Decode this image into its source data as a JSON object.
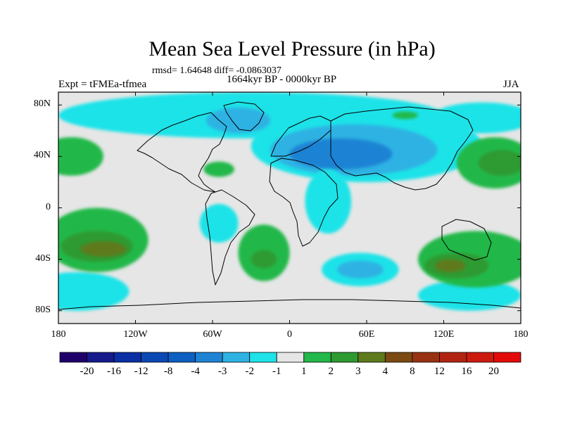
{
  "chart_data": {
    "type": "heatmap",
    "title": "Mean Sea Level Pressure (in hPa)",
    "stats_text": "rmsd= 1.64648 diff= -0.0863037",
    "period": "1664kyr BP - 0000kyr BP",
    "experiment": "Expt = tFMEa-tfmea",
    "season": "JJA",
    "xlim": [
      -180,
      180
    ],
    "ylim": [
      -90,
      90
    ],
    "x_ticks": [
      {
        "value": -180,
        "label": "180"
      },
      {
        "value": -120,
        "label": "120W"
      },
      {
        "value": -60,
        "label": "60W"
      },
      {
        "value": 0,
        "label": "0"
      },
      {
        "value": 60,
        "label": "60E"
      },
      {
        "value": 120,
        "label": "120E"
      },
      {
        "value": 180,
        "label": "180"
      }
    ],
    "y_ticks": [
      {
        "value": 80,
        "label": "80N"
      },
      {
        "value": 40,
        "label": "40N"
      },
      {
        "value": 0,
        "label": "0"
      },
      {
        "value": -40,
        "label": "40S"
      },
      {
        "value": -80,
        "label": "80S"
      }
    ],
    "colorbar": {
      "levels": [
        "-20",
        "-16",
        "-12",
        "-8",
        "-4",
        "-3",
        "-2",
        "-1",
        "1",
        "2",
        "3",
        "4",
        "8",
        "12",
        "16",
        "20"
      ],
      "colors": [
        "#1f006b",
        "#161a8c",
        "#0a2ea3",
        "#0a48b4",
        "#0d5fc1",
        "#1f83d4",
        "#2db2e3",
        "#1ee3e8",
        "#e6e6e6",
        "#22b84a",
        "#2e9a30",
        "#5e7a1c",
        "#7a4a12",
        "#983212",
        "#b22411",
        "#cc1a0e",
        "#e40a0a"
      ]
    },
    "regions": [
      {
        "name": "arctic-cyan",
        "lon": -30,
        "lat": 72,
        "rlon": 150,
        "rlat": 18,
        "bin": 7
      },
      {
        "name": "arctic-pacific-cyan",
        "lon": 150,
        "lat": 70,
        "rlon": 40,
        "rlat": 12,
        "bin": 7
      },
      {
        "name": "eurasia-low-outer",
        "lon": 60,
        "lat": 48,
        "rlon": 90,
        "rlat": 28,
        "bin": 7
      },
      {
        "name": "eurasia-low-mid",
        "lon": 50,
        "lat": 45,
        "rlon": 65,
        "rlat": 20,
        "bin": 6
      },
      {
        "name": "eurasia-low-core",
        "lon": 40,
        "lat": 42,
        "rlon": 40,
        "rlat": 12,
        "bin": 5
      },
      {
        "name": "greenland-low",
        "lon": -40,
        "lat": 68,
        "rlon": 25,
        "rlat": 10,
        "bin": 6
      },
      {
        "name": "africa-cyan",
        "lon": 30,
        "lat": 5,
        "rlon": 18,
        "rlat": 25,
        "bin": 7
      },
      {
        "name": "south-america-cyan",
        "lon": -55,
        "lat": -12,
        "rlon": 15,
        "rlat": 15,
        "bin": 7
      },
      {
        "name": "south-indian-cyan",
        "lon": 55,
        "lat": -48,
        "rlon": 30,
        "rlat": 13,
        "bin": 7
      },
      {
        "name": "south-indian-blue",
        "lon": 55,
        "lat": -48,
        "rlon": 18,
        "rlat": 7,
        "bin": 6
      },
      {
        "name": "south-pacific-cyan-w",
        "lon": -165,
        "lat": -65,
        "rlon": 40,
        "rlat": 15,
        "bin": 7
      },
      {
        "name": "antarctic-cyan-e",
        "lon": 140,
        "lat": -68,
        "rlon": 40,
        "rlat": 12,
        "bin": 7
      },
      {
        "name": "north-pacific-green-w",
        "lon": -170,
        "lat": 40,
        "rlon": 25,
        "rlat": 15,
        "bin": 9
      },
      {
        "name": "north-pacific-green-e",
        "lon": 160,
        "lat": 35,
        "rlon": 30,
        "rlat": 20,
        "bin": 9
      },
      {
        "name": "north-pacific-olive-e",
        "lon": 165,
        "lat": 35,
        "rlon": 18,
        "rlat": 10,
        "bin": 10
      },
      {
        "name": "north-atlantic-green",
        "lon": -55,
        "lat": 30,
        "rlon": 12,
        "rlat": 6,
        "bin": 9
      },
      {
        "name": "south-pacific-green-w",
        "lon": -150,
        "lat": -25,
        "rlon": 40,
        "rlat": 25,
        "bin": 9
      },
      {
        "name": "south-pacific-olive-w",
        "lon": -150,
        "lat": -30,
        "rlon": 28,
        "rlat": 12,
        "bin": 10
      },
      {
        "name": "south-pacific-brown-w",
        "lon": -145,
        "lat": -32,
        "rlon": 18,
        "rlat": 6,
        "bin": 11
      },
      {
        "name": "south-atlantic-green",
        "lon": -20,
        "lat": -35,
        "rlon": 20,
        "rlat": 22,
        "bin": 9
      },
      {
        "name": "south-atlantic-olive",
        "lon": -20,
        "lat": -40,
        "rlon": 10,
        "rlat": 7,
        "bin": 10
      },
      {
        "name": "south-pacific-green-e",
        "lon": 145,
        "lat": -40,
        "rlon": 45,
        "rlat": 22,
        "bin": 9
      },
      {
        "name": "south-pacific-olive-e",
        "lon": 130,
        "lat": -45,
        "rlon": 25,
        "rlat": 10,
        "bin": 10
      },
      {
        "name": "south-pacific-brown-e",
        "lon": 125,
        "lat": -45,
        "rlon": 12,
        "rlat": 5,
        "bin": 11
      },
      {
        "name": "arctic-green-east",
        "lon": 90,
        "lat": 72,
        "rlon": 10,
        "rlat": 3,
        "bin": 9
      }
    ]
  }
}
